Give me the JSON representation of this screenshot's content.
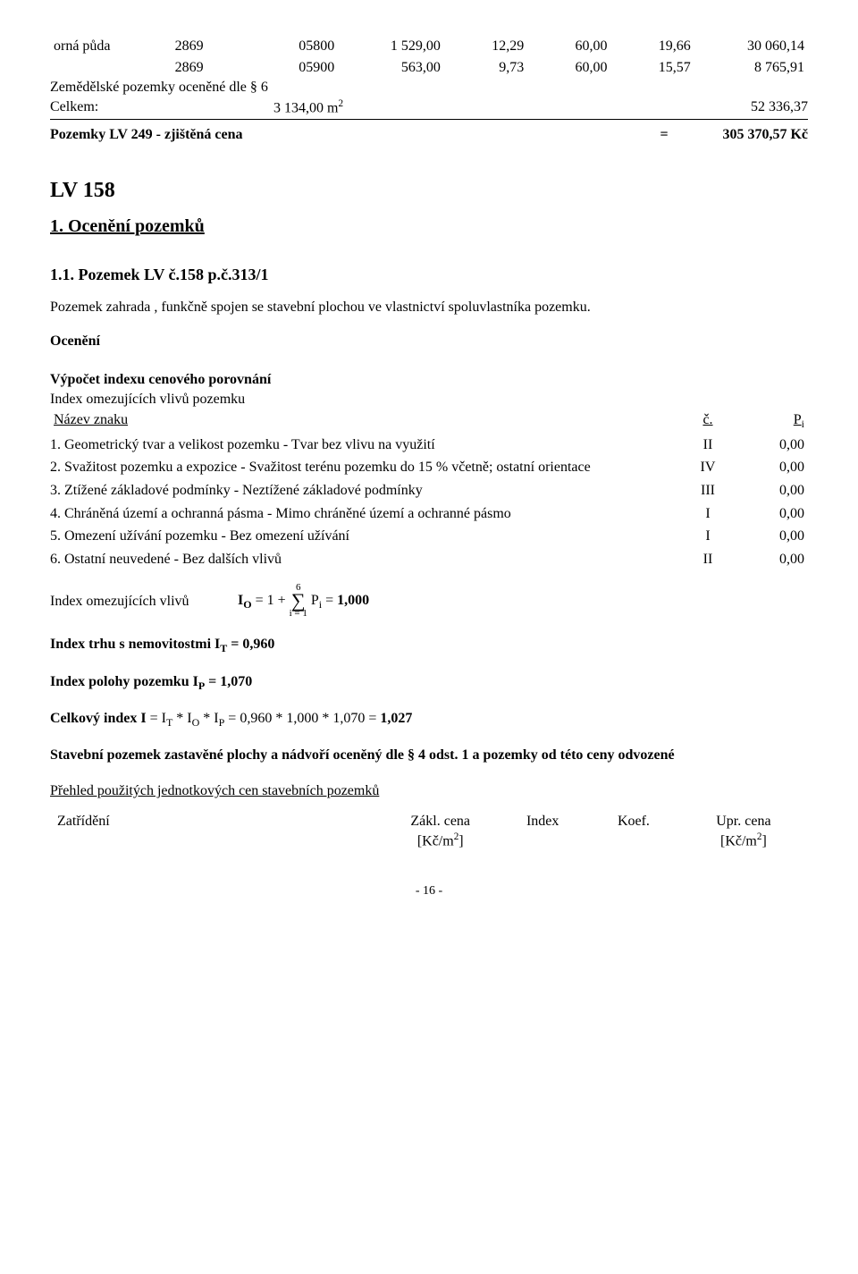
{
  "soil_rows": [
    {
      "label": "orná půda",
      "c1": "2869",
      "c2": "05800",
      "c3": "1 529,00",
      "c4": "12,29",
      "c5": "60,00",
      "c6": "19,66",
      "c7": "30 060,14"
    },
    {
      "label": "",
      "c1": "2869",
      "c2": "05900",
      "c3": "563,00",
      "c4": "9,73",
      "c5": "60,00",
      "c6": "15,57",
      "c7": "8 765,91"
    }
  ],
  "zem_line": "Zemědělské pozemky oceněné dle § 6",
  "celkem_label": "Celkem:",
  "celkem_area": "3 134,00 m",
  "celkem_total": "52 336,37",
  "lv249_label": "Pozemky LV 249 - zjištěná cena",
  "lv249_eq": "=",
  "lv249_val": "305 370,57 Kč",
  "lv158_title": "LV 158",
  "oceneni_pozemku": "1. Ocenění pozemků",
  "pozemek_lv": "1.1. Pozemek LV č.158 p.č.313/1",
  "pozemek_desc": "Pozemek zahrada , funkčně spojen se stavební plochou ve vlastnictví spoluvlastníka pozemku.",
  "oceneni_bold": "Ocenění",
  "vypocet_title": "Výpočet indexu cenového porovnání",
  "index_omez_title": "Index omezujících vlivů pozemku",
  "header_nazev": "Název znaku",
  "header_c": "č.",
  "header_p": "P",
  "header_p_sub": "i",
  "znaky": [
    {
      "t": "1. Geometrický tvar a velikost pozemku - Tvar bez vlivu na využití",
      "n": "II",
      "v": "0,00"
    },
    {
      "t": "2. Svažitost pozemku a expozice - Svažitost terénu pozemku do 15 % včetně; ostatní orientace",
      "n": "IV",
      "v": "0,00"
    },
    {
      "t": "3. Ztížené základové podmínky - Neztížené základové podmínky",
      "n": "III",
      "v": "0,00"
    },
    {
      "t": "4. Chráněná území a ochranná pásma - Mimo chráněné území a ochranné pásmo",
      "n": "I",
      "v": "0,00"
    },
    {
      "t": "5. Omezení užívání pozemku - Bez omezení užívání",
      "n": "I",
      "v": "0,00"
    },
    {
      "t": "6. Ostatní neuvedené - Bez dalších vlivů",
      "n": "II",
      "v": "0,00"
    }
  ],
  "formula_label": "Index omezujících vlivů",
  "formula_lhs": "I",
  "formula_sub_O": "O",
  "formula_eq1": " = 1 + ",
  "sigma_top": "6",
  "sigma_bot": "i = 1",
  "formula_rhs_P": " P",
  "formula_rhs_sub": "i",
  "formula_rhs_end": " = ",
  "formula_result": "1,000",
  "index_trhu_pre": "Index trhu s nemovitostmi I",
  "index_trhu_sub": "T",
  "index_trhu_post": " = 0,960",
  "index_polohy_pre": "Index polohy pozemku I",
  "index_polohy_sub": "P",
  "index_polohy_post": " = 1,070",
  "celk_index_label": "Celkový index I",
  "celk_index_mid1": " = I",
  "celk_index_mid2": " * I",
  "celk_index_mid3": " * I",
  "celk_index_tail": " = 0,960 * 1,000 * 1,070 = ",
  "celk_index_res": "1,027",
  "stavebni_line": "Stavební pozemek zastavěné plochy a nádvoří oceněný dle § 4 odst. 1 a pozemky od této ceny odvozené",
  "prehled_line": "Přehled použitých jednotkových cen stavebních pozemků",
  "zatr_col0": "Zatřídění",
  "zatr_col1a": "Zákl. cena",
  "zatr_col1b_pre": "[Kč/m",
  "zatr_col1b_post": "]",
  "zatr_col2": "Index",
  "zatr_col3": "Koef.",
  "zatr_col4a": "Upr. cena",
  "zatr_col4b_pre": "[Kč/m",
  "zatr_col4b_post": "]",
  "page_no": "- 16 -"
}
